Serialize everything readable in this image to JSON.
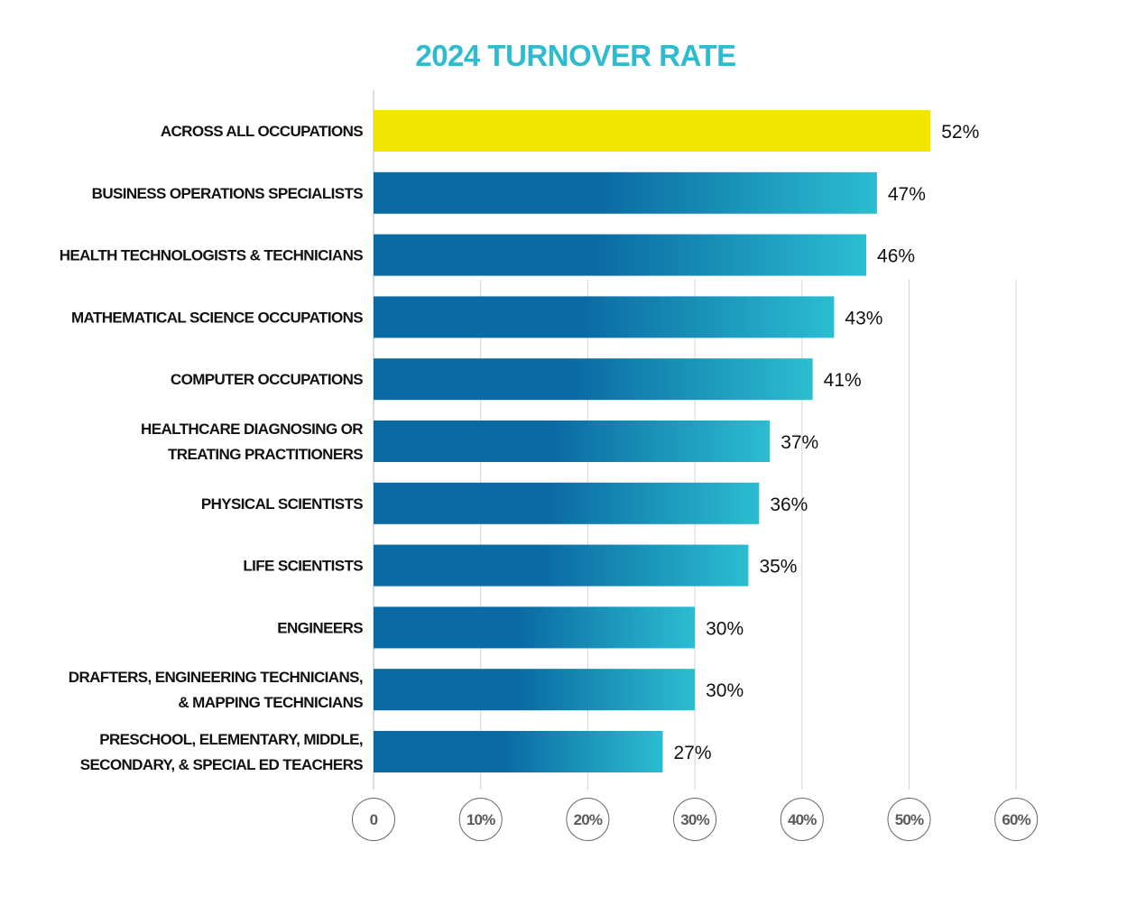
{
  "colors": {
    "title": "#2cbcd0",
    "highlight_bar": "#f2e600",
    "bar_dark": "#0a6aa3",
    "bar_light": "#2bbdd0",
    "gridline": "#d4d4d4",
    "axis_line": "#b9b9b9",
    "tick_circle_stroke": "#666666"
  },
  "chart_data": {
    "type": "bar",
    "orientation": "horizontal",
    "title": "2024 TURNOVER RATE",
    "categories": [
      [
        "ACROSS ALL OCCUPATIONS"
      ],
      [
        "BUSINESS OPERATIONS SPECIALISTS"
      ],
      [
        "HEALTH TECHNOLOGISTS & TECHNICIANS"
      ],
      [
        "MATHEMATICAL SCIENCE OCCUPATIONS"
      ],
      [
        "COMPUTER OCCUPATIONS"
      ],
      [
        "HEALTHCARE DIAGNOSING OR",
        "TREATING PRACTITIONERS"
      ],
      [
        "PHYSICAL SCIENTISTS"
      ],
      [
        "LIFE SCIENTISTS"
      ],
      [
        "ENGINEERS"
      ],
      [
        "DRAFTERS, ENGINEERING TECHNICIANS,",
        "& MAPPING TECHNICIANS"
      ],
      [
        "PRESCHOOL, ELEMENTARY, MIDDLE,",
        "SECONDARY, & SPECIAL ED TEACHERS"
      ]
    ],
    "values": [
      52,
      47,
      46,
      43,
      41,
      37,
      36,
      35,
      30,
      30,
      27
    ],
    "value_labels": [
      "52%",
      "47%",
      "46%",
      "43%",
      "41%",
      "37%",
      "36%",
      "35%",
      "30%",
      "30%",
      "27%"
    ],
    "highlight_index": 0,
    "xlim": [
      0,
      60
    ],
    "x_ticks": [
      0,
      10,
      20,
      30,
      40,
      50,
      60
    ],
    "x_tick_labels": [
      "0",
      "10%",
      "20%",
      "30%",
      "40%",
      "50%",
      "60%"
    ],
    "grid": true,
    "legend": "none"
  }
}
